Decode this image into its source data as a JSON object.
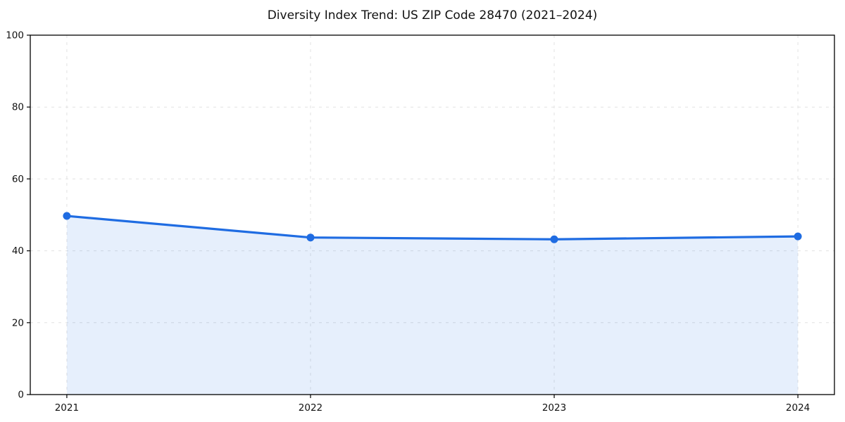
{
  "chart_data": {
    "type": "area",
    "title": "Diversity Index Trend: US ZIP Code 28470 (2021–2024)",
    "x": [
      2021,
      2022,
      2023,
      2024
    ],
    "x_labels": [
      "2021",
      "2022",
      "2023",
      "2024"
    ],
    "series": [
      {
        "name": "Diversity Index",
        "values": [
          49.7,
          43.7,
          43.2,
          44.0
        ]
      }
    ],
    "xlabel": "",
    "ylabel": "",
    "xlim": [
      2020.85,
      2024.15
    ],
    "ylim": [
      0,
      100
    ],
    "yticks": [
      0,
      20,
      40,
      60,
      80,
      100
    ],
    "grid": true,
    "grid_style": "dashed",
    "legend": "none",
    "colors": {
      "line": "#1f6ce2",
      "marker": "#1f6ce2",
      "fill": "rgba(31, 108, 226, 0.11)",
      "grid": "#e2e2e2",
      "axis": "#000000",
      "tick_label": "#111111",
      "title": "#111111",
      "background": "#ffffff"
    }
  }
}
